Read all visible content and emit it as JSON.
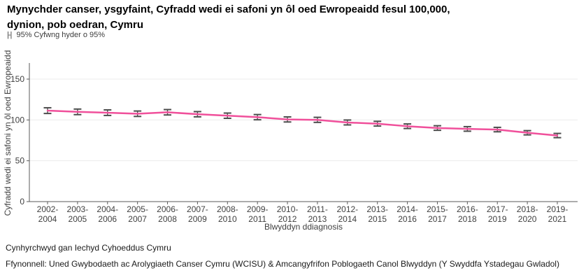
{
  "header": {
    "title_line1": "Mynychder canser, ysgyfaint, Cyfradd wedi ei safoni yn ôl oed Ewropeaidd fesul 100,000,",
    "title_line2": "dynion, pob oedran, Cymru",
    "legend_glyph": "|-|",
    "legend_text": "95% Cyfwng hyder o 95%"
  },
  "chart_data": {
    "type": "line",
    "title": "Mynychder canser, ysgyfaint, Cyfradd wedi ei safoni yn ôl oed Ewropeaidd fesul 100,000, dynion, pob oedran, Cymru",
    "subtitle": "|-| 95% Cyfwng hyder o 95%",
    "x": [
      "2002-2004",
      "2003-2005",
      "2004-2006",
      "2005-2007",
      "2006-2008",
      "2007-2009",
      "2008-2010",
      "2009-2011",
      "2010-2012",
      "2011-2013",
      "2012-2014",
      "2013-2015",
      "2014-2016",
      "2015-2017",
      "2016-2018",
      "2017-2019",
      "2018-2020",
      "2019-2021"
    ],
    "series": [
      {
        "values": [
          111.4,
          109.9,
          108.9,
          107.6,
          109.4,
          107.0,
          105.2,
          103.4,
          100.6,
          100.1,
          96.9,
          95.4,
          92.3,
          90.1,
          89.0,
          88.2,
          84.3,
          80.9
        ],
        "ci_low": [
          107.9,
          106.5,
          105.5,
          104.3,
          106.1,
          103.8,
          102.0,
          100.2,
          97.5,
          97.0,
          93.9,
          92.5,
          89.5,
          87.3,
          86.2,
          85.5,
          81.7,
          78.3
        ],
        "ci_high": [
          114.9,
          113.3,
          112.3,
          110.9,
          112.7,
          110.2,
          108.4,
          106.6,
          103.7,
          103.2,
          99.9,
          98.3,
          95.1,
          92.9,
          91.8,
          90.9,
          86.9,
          83.5
        ]
      }
    ],
    "xlabel": "Blwyddyn ddiagnosis",
    "ylabel": "Cyfradd wedi ei safoni yn ôl oed Ewropeaidd",
    "ylim": [
      0,
      170
    ],
    "yticks": [
      0,
      50,
      100,
      150
    ],
    "grid": "horizontal",
    "legend_position": "none",
    "colors": {
      "line": "#f0509b",
      "errorbar": "#4d4d4d",
      "grid": "#ececec",
      "spine": "#5a5a5a",
      "tick_text": "#404040"
    }
  },
  "footer": {
    "produced_by": "Cynhyrchwyd gan Iechyd Cyhoeddus Cymru",
    "source": "Ffynonnell: Uned Gwybodaeth ac Arolygiaeth Canser Cymru (WCISU) & Amcangyfrifon Poblogaeth Canol Blwyddyn (Y Swyddfa Ystadegau Gwladol)"
  }
}
